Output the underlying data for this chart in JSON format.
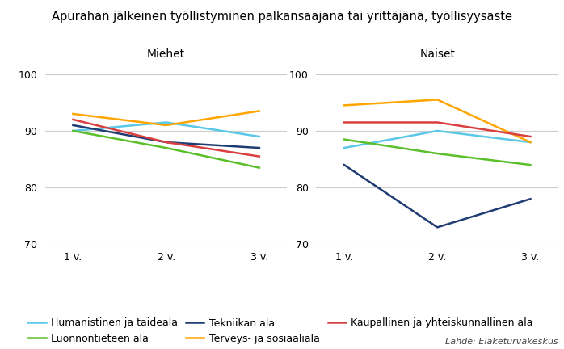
{
  "title": "Apurahan jälkeinen työllistyminen palkansaajana tai yrittäjänä, työllisyysaste",
  "subtitle_left": "Miehet",
  "subtitle_right": "Naiset",
  "x_labels": [
    "1 v.",
    "2 v.",
    "3 v."
  ],
  "x_values": [
    1,
    2,
    3
  ],
  "ylim": [
    70,
    102
  ],
  "yticks": [
    70,
    80,
    90,
    100
  ],
  "source": "Lähde: Eläketurvakeskus",
  "series": [
    {
      "name": "Humanistinen ja taideala",
      "color": "#5BC8E8",
      "miehet": [
        90.0,
        91.5,
        89.0
      ],
      "naiset": [
        87.0,
        90.0,
        88.0
      ]
    },
    {
      "name": "Luonnontieteen ala",
      "color": "#5BBF2A",
      "miehet": [
        90.0,
        87.0,
        83.5
      ],
      "naiset": [
        88.5,
        86.0,
        84.0
      ]
    },
    {
      "name": "Tekniikan ala",
      "color": "#1F3C73",
      "miehet": [
        91.0,
        88.0,
        87.0
      ],
      "naiset": [
        84.0,
        73.0,
        78.0
      ]
    },
    {
      "name": "Terveys- ja sosiaaliala",
      "color": "#FFA500",
      "miehet": [
        93.0,
        91.0,
        93.5
      ],
      "naiset": [
        94.5,
        95.5,
        88.0
      ]
    },
    {
      "name": "Kaupallinen ja yhteiskunnallinen ala",
      "color": "#D94040",
      "miehet": [
        92.0,
        88.0,
        85.5
      ],
      "naiset": [
        91.5,
        91.5,
        89.0
      ]
    }
  ],
  "background_color": "#FFFFFF",
  "grid_color": "#CCCCCC",
  "line_width": 1.8,
  "title_fontsize": 10.5,
  "subtitle_fontsize": 10,
  "tick_fontsize": 9,
  "legend_fontsize": 9
}
